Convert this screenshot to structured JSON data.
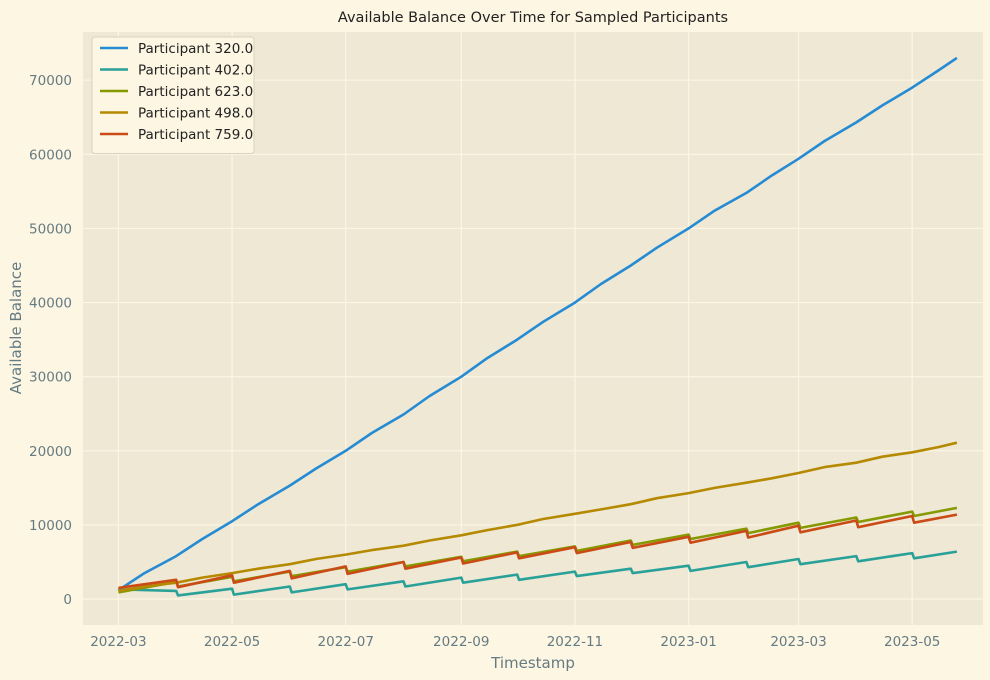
{
  "colors": {
    "figure_bg": "#fdf6e3",
    "plot_bg": "#eee8d5",
    "grid": "#fdf6e3",
    "text": "#657b83",
    "title": "#222222"
  },
  "chart_data": {
    "type": "line",
    "title": "Available Balance Over Time for Sampled Participants",
    "xlabel": "Timestamp",
    "ylabel": "Available Balance",
    "xlim": [
      "2022-02-10",
      "2023-06-08"
    ],
    "ylim": [
      -3500,
      76500
    ],
    "x_ticks": [
      "2022-03-01",
      "2022-05-01",
      "2022-07-01",
      "2022-09-01",
      "2022-11-01",
      "2023-01-01",
      "2023-03-01",
      "2023-05-01"
    ],
    "x_tick_labels": [
      "2022-03",
      "2022-05",
      "2022-07",
      "2022-09",
      "2022-11",
      "2023-01",
      "2023-03",
      "2023-05"
    ],
    "y_ticks": [
      0,
      10000,
      20000,
      30000,
      40000,
      50000,
      60000,
      70000
    ],
    "y_tick_labels": [
      "0",
      "10000",
      "20000",
      "30000",
      "40000",
      "50000",
      "60000",
      "70000"
    ],
    "grid": true,
    "legend_position": "top-left",
    "series": [
      {
        "name": "Participant 320.0",
        "color": "#268bd2",
        "x": [
          "2022-03-01",
          "2022-03-15",
          "2022-04-01",
          "2022-04-15",
          "2022-05-01",
          "2022-05-15",
          "2022-06-01",
          "2022-06-15",
          "2022-07-01",
          "2022-07-15",
          "2022-08-01",
          "2022-08-15",
          "2022-09-01",
          "2022-09-15",
          "2022-10-01",
          "2022-10-15",
          "2022-11-01",
          "2022-11-15",
          "2022-12-01",
          "2022-12-15",
          "2023-01-01",
          "2023-01-15",
          "2023-02-01",
          "2023-02-15",
          "2023-03-01",
          "2023-03-15",
          "2023-04-01",
          "2023-04-15",
          "2023-05-01",
          "2023-05-15",
          "2023-05-25"
        ],
        "values": [
          1200,
          3500,
          5800,
          8100,
          10500,
          12800,
          15300,
          17600,
          20000,
          22400,
          24900,
          27400,
          30000,
          32500,
          35000,
          37400,
          40000,
          42500,
          45000,
          47400,
          50000,
          52400,
          54800,
          57200,
          59400,
          61800,
          64300,
          66600,
          69000,
          71300,
          73000
        ]
      },
      {
        "name": "Participant 402.0",
        "color": "#2aa198",
        "x": [
          "2022-03-01",
          "2022-04-01",
          "2022-04-02",
          "2022-05-01",
          "2022-05-02",
          "2022-06-01",
          "2022-06-02",
          "2022-07-01",
          "2022-07-02",
          "2022-08-01",
          "2022-08-02",
          "2022-09-01",
          "2022-09-02",
          "2022-10-01",
          "2022-10-02",
          "2022-11-01",
          "2022-11-02",
          "2022-12-01",
          "2022-12-02",
          "2023-01-01",
          "2023-01-02",
          "2023-02-01",
          "2023-02-02",
          "2023-03-01",
          "2023-03-02",
          "2023-04-01",
          "2023-04-02",
          "2023-05-01",
          "2023-05-02",
          "2023-05-25"
        ],
        "values": [
          1300,
          1100,
          500,
          1400,
          600,
          1700,
          900,
          2000,
          1300,
          2400,
          1700,
          2900,
          2200,
          3300,
          2600,
          3700,
          3100,
          4100,
          3500,
          4500,
          3800,
          5000,
          4300,
          5400,
          4700,
          5800,
          5100,
          6200,
          5500,
          6400
        ]
      },
      {
        "name": "Participant 623.0",
        "color": "#859900",
        "x": [
          "2022-03-01",
          "2022-04-01",
          "2022-04-02",
          "2022-05-01",
          "2022-05-02",
          "2022-06-01",
          "2022-06-02",
          "2022-07-01",
          "2022-07-02",
          "2022-08-01",
          "2022-08-02",
          "2022-09-01",
          "2022-09-02",
          "2022-10-01",
          "2022-10-02",
          "2022-11-01",
          "2022-11-02",
          "2022-12-01",
          "2022-12-02",
          "2023-01-01",
          "2023-01-02",
          "2023-02-01",
          "2023-02-02",
          "2023-03-01",
          "2023-03-02",
          "2023-04-01",
          "2023-04-02",
          "2023-05-01",
          "2023-05-02",
          "2023-05-25"
        ],
        "values": [
          900,
          2300,
          1700,
          3000,
          2400,
          3700,
          3100,
          4300,
          3700,
          5000,
          4400,
          5700,
          5100,
          6400,
          5800,
          7100,
          6500,
          7900,
          7300,
          8700,
          8100,
          9500,
          8900,
          10300,
          9600,
          11000,
          10400,
          11800,
          11200,
          12300
        ]
      },
      {
        "name": "Participant 498.0",
        "color": "#b58900",
        "x": [
          "2022-03-01",
          "2022-03-15",
          "2022-04-01",
          "2022-04-15",
          "2022-05-01",
          "2022-05-15",
          "2022-06-01",
          "2022-06-15",
          "2022-07-01",
          "2022-07-15",
          "2022-08-01",
          "2022-08-15",
          "2022-09-01",
          "2022-09-15",
          "2022-10-01",
          "2022-10-15",
          "2022-11-01",
          "2022-11-15",
          "2022-12-01",
          "2022-12-15",
          "2023-01-01",
          "2023-01-15",
          "2023-02-01",
          "2023-02-15",
          "2023-03-01",
          "2023-03-15",
          "2023-04-01",
          "2023-04-15",
          "2023-05-01",
          "2023-05-15",
          "2023-05-25"
        ],
        "values": [
          1100,
          1700,
          2200,
          2900,
          3500,
          4100,
          4700,
          5400,
          6000,
          6600,
          7200,
          7900,
          8600,
          9300,
          10000,
          10800,
          11500,
          12100,
          12800,
          13600,
          14300,
          15000,
          15700,
          16300,
          17000,
          17800,
          18400,
          19200,
          19800,
          20500,
          21100
        ]
      },
      {
        "name": "Participant 759.0",
        "color": "#cb4b16",
        "x": [
          "2022-03-01",
          "2022-04-01",
          "2022-04-02",
          "2022-05-01",
          "2022-05-02",
          "2022-06-01",
          "2022-06-02",
          "2022-07-01",
          "2022-07-02",
          "2022-08-01",
          "2022-08-02",
          "2022-09-01",
          "2022-09-02",
          "2022-10-01",
          "2022-10-02",
          "2022-11-01",
          "2022-11-02",
          "2022-12-01",
          "2022-12-02",
          "2023-01-01",
          "2023-01-02",
          "2023-02-01",
          "2023-02-02",
          "2023-03-01",
          "2023-03-02",
          "2023-04-01",
          "2023-04-02",
          "2023-05-01",
          "2023-05-02",
          "2023-05-25"
        ],
        "values": [
          1500,
          2600,
          1600,
          3200,
          2200,
          3800,
          2800,
          4400,
          3400,
          5000,
          4100,
          5600,
          4800,
          6300,
          5500,
          7000,
          6200,
          7700,
          6900,
          8400,
          7600,
          9200,
          8300,
          9900,
          9000,
          10600,
          9700,
          11200,
          10300,
          11400
        ]
      }
    ]
  }
}
